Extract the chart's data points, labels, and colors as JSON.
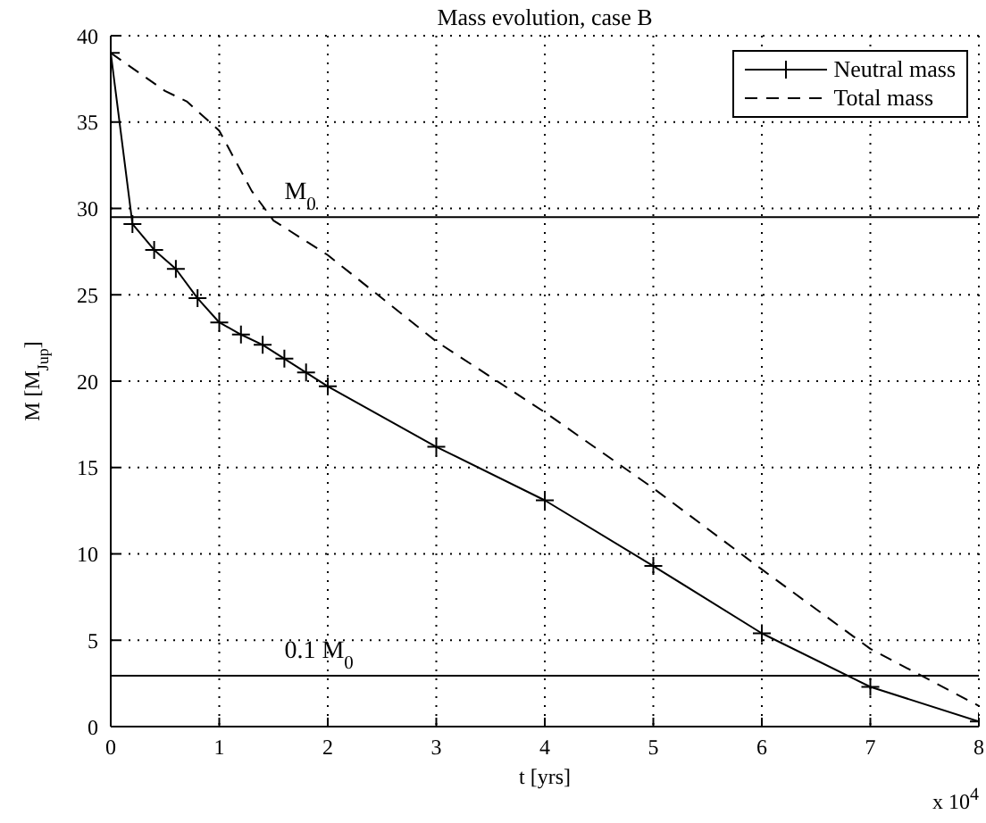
{
  "chart_data": {
    "type": "line",
    "title": "Mass evolution, case B",
    "xlabel": "t [yrs]",
    "ylabel": "M [M$_{Jup}$]",
    "xlim": [
      0,
      8
    ],
    "xticks": [
      0,
      1,
      2,
      3,
      4,
      5,
      6,
      7,
      8
    ],
    "ylim": [
      0,
      40
    ],
    "yticks": [
      0,
      5,
      10,
      15,
      20,
      25,
      30,
      35,
      40
    ],
    "grid": true,
    "legend": "top right",
    "series": [
      {
        "name": "Neutral mass",
        "color": "#000000",
        "marker": "cross",
        "line_style": "solid",
        "x": [
          0,
          0.2,
          0.4,
          0.6,
          0.8,
          1.0,
          1.2,
          1.4,
          1.6,
          1.8,
          2,
          3,
          4,
          5,
          6,
          7,
          8
        ],
        "values": [
          39,
          29.1,
          27.6,
          26.5,
          24.8,
          23.4,
          22.7,
          22.1,
          21.3,
          20.5,
          19.7,
          16.2,
          13.1,
          9.3,
          5.4,
          2.3,
          0.3
        ]
      },
      {
        "name": "Total mass",
        "color": "#000000",
        "marker": "none",
        "line_style": "dashed",
        "x": [
          0,
          0.5,
          0.7,
          1,
          1.3,
          1.5,
          2,
          3,
          4,
          5,
          6,
          7,
          8
        ],
        "values": [
          39,
          36.8,
          36.2,
          34.5,
          31,
          29.3,
          27.3,
          22.3,
          18.2,
          13.8,
          9.1,
          4.5,
          1.2
        ]
      }
    ],
    "ref_lines": [
      {
        "axis": "y",
        "value": 29.5,
        "label": "M$_{0}$",
        "color": "#000000",
        "line_style": "solid"
      },
      {
        "axis": "y",
        "value": 2.95,
        "label": "0.1 M$_{0}$",
        "color": "#000000",
        "line_style": "solid"
      }
    ],
    "annotations": [
      "x 10$^{4}$"
    ]
  }
}
